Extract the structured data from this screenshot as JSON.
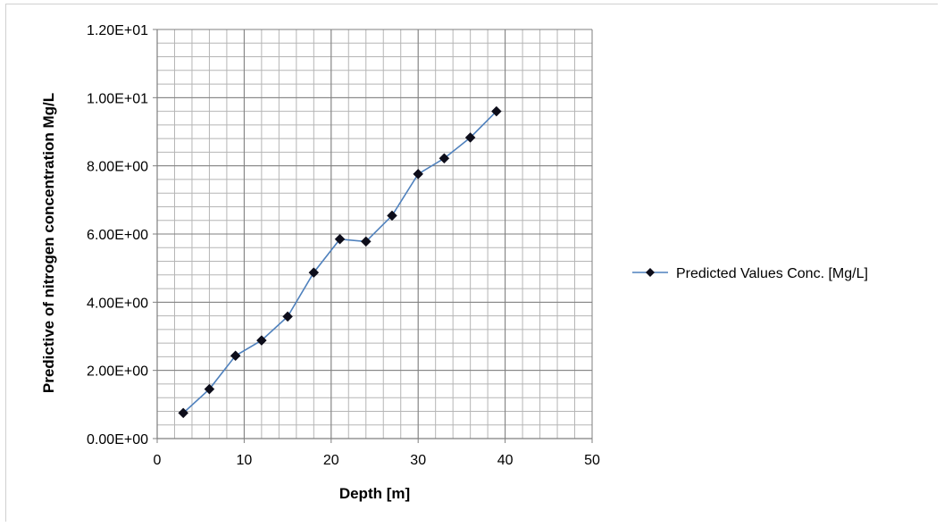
{
  "chart_data": {
    "type": "line",
    "title": "",
    "xlabel": "Depth [m]",
    "ylabel": "Predictive of nitrogen concentration Mg/L",
    "xlim": [
      0,
      50
    ],
    "ylim": [
      0,
      12
    ],
    "x_ticks": [
      0,
      10,
      20,
      30,
      40,
      50
    ],
    "x_tick_labels": [
      "0",
      "10",
      "20",
      "30",
      "40",
      "50"
    ],
    "y_ticks": [
      0,
      2,
      4,
      6,
      8,
      10,
      12
    ],
    "y_tick_labels": [
      "0.00E+00",
      "2.00E+00",
      "4.00E+00",
      "6.00E+00",
      "8.00E+00",
      "1.00E+01",
      "1.20E+01"
    ],
    "grid": true,
    "legend_position": "right",
    "series": [
      {
        "name": "Predicted  Values Conc. [Mg/L]",
        "color": "#4f81bd",
        "marker": "diamond",
        "x": [
          3,
          6,
          9,
          12,
          15,
          18,
          21,
          24,
          27,
          30,
          33,
          36,
          39
        ],
        "y": [
          0.75,
          1.45,
          2.43,
          2.88,
          3.58,
          4.87,
          5.85,
          5.78,
          6.54,
          7.76,
          8.22,
          8.83,
          9.6
        ]
      }
    ]
  }
}
